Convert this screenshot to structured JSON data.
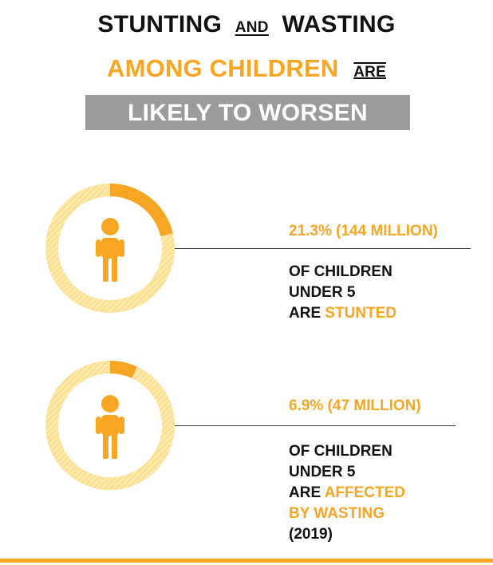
{
  "header": {
    "line1_a": "STUNTING",
    "line1_b": "AND",
    "line1_c": "WASTING",
    "line2_a": "AMONG CHILDREN",
    "line2_b": "ARE",
    "banner": "LIKELY TO WORSEN"
  },
  "stunting": {
    "value_label": "21.3% (144 MILLION)",
    "desc_line1": "OF CHILDREN",
    "desc_line2": "UNDER 5",
    "desc_line3_a": "ARE ",
    "desc_line3_b": "STUNTED"
  },
  "wasting": {
    "value_label": "6.9% (47 MILLION)",
    "desc_line1": "OF CHILDREN",
    "desc_line2": "UNDER 5",
    "desc_line3_a": "ARE ",
    "desc_line3_b": "AFFECTED",
    "desc_line4": "BY WASTING",
    "desc_line5": "(2019)"
  },
  "colors": {
    "accent": "#f6a623",
    "ring_light": "#fde7a9",
    "banner_bg": "#9b9b9b",
    "text": "#111111"
  },
  "icons": [
    "child-icon",
    "child-icon"
  ],
  "chart_data": [
    {
      "type": "pie",
      "values": [
        21.3,
        78.7
      ]
    },
    {
      "type": "pie",
      "values": [
        6.9,
        93.1
      ]
    }
  ]
}
